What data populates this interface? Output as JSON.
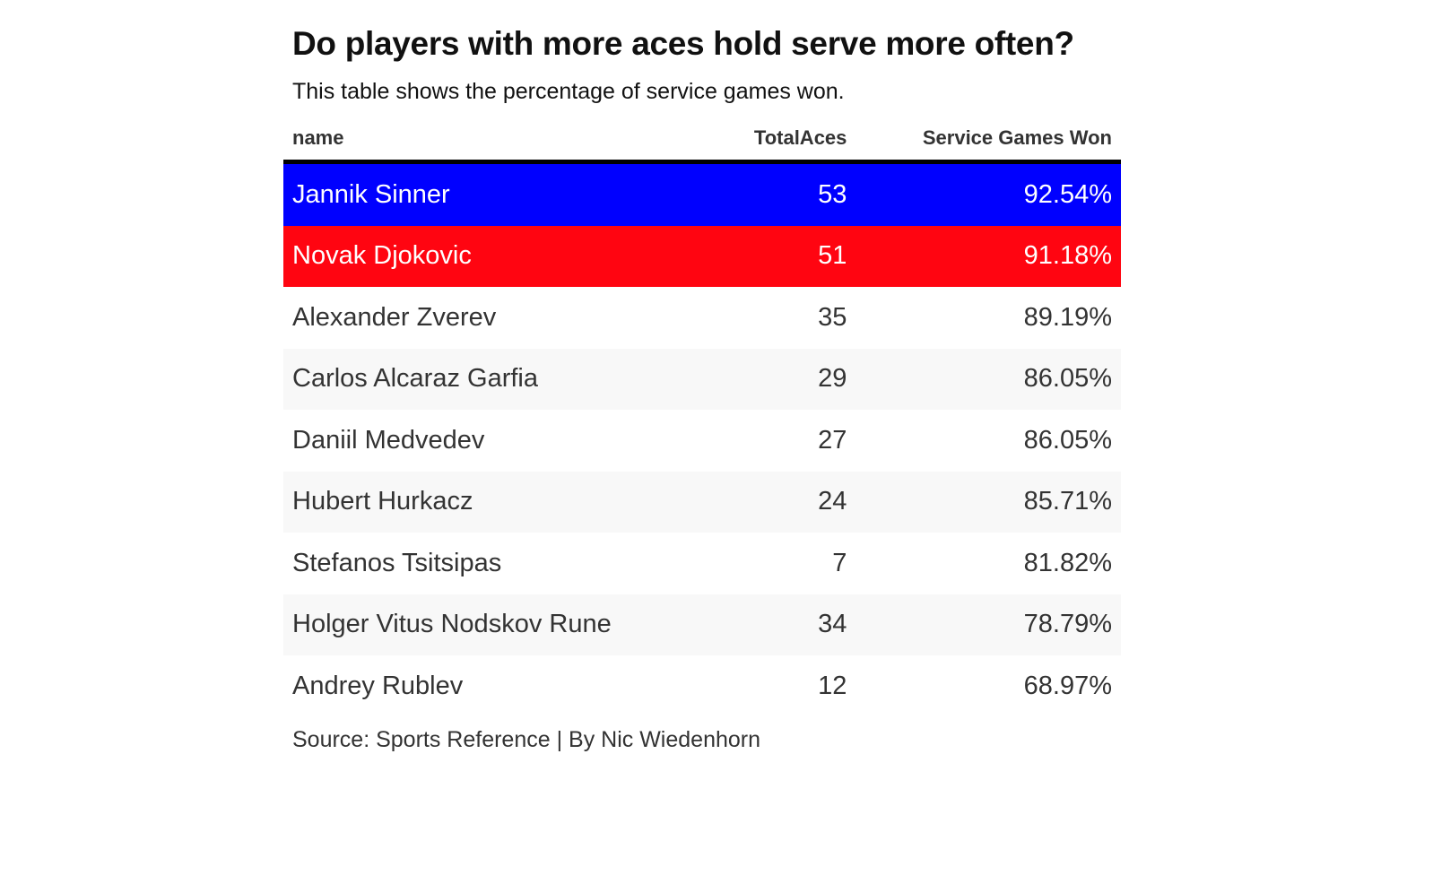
{
  "title": "Do players with more aces hold serve more often?",
  "subtitle": "This table shows the percentage of service games won.",
  "source": "Source: Sports Reference | By Nic Wiedenhorn",
  "colors": {
    "highlight_1": "#0000ff",
    "highlight_2": "#ff0511",
    "alt_row": "#f8f8f8",
    "header_rule": "#000000"
  },
  "chart_data": {
    "type": "table",
    "title": "Do players with more aces hold serve more often?",
    "subtitle": "This table shows the percentage of service games won.",
    "columns": [
      "name",
      "TotalAces",
      "Service Games Won"
    ],
    "rows": [
      {
        "name": "Jannik Sinner",
        "aces": "53",
        "won": "92.54%",
        "highlight": "#0000ff"
      },
      {
        "name": "Novak Djokovic",
        "aces": "51",
        "won": "91.18%",
        "highlight": "#ff0511"
      },
      {
        "name": "Alexander Zverev",
        "aces": "35",
        "won": "89.19%"
      },
      {
        "name": "Carlos Alcaraz Garfia",
        "aces": "29",
        "won": "86.05%"
      },
      {
        "name": "Daniil Medvedev",
        "aces": "27",
        "won": "86.05%"
      },
      {
        "name": "Hubert Hurkacz",
        "aces": "24",
        "won": "85.71%"
      },
      {
        "name": "Stefanos Tsitsipas",
        "aces": "7",
        "won": "81.82%"
      },
      {
        "name": "Holger Vitus Nodskov Rune",
        "aces": "34",
        "won": "78.79%"
      },
      {
        "name": "Andrey Rublev",
        "aces": "12",
        "won": "68.97%"
      }
    ],
    "source": "Source: Sports Reference | By Nic Wiedenhorn"
  }
}
